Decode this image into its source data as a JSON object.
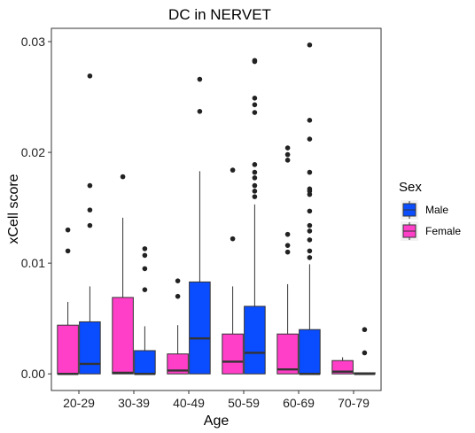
{
  "chart_data": {
    "type": "boxplot",
    "title": "DC in NERVET",
    "xlabel": "Age",
    "ylabel": "xCell score",
    "ylim": [
      -0.0015,
      0.0312
    ],
    "yticks": [
      {
        "value": 0.0,
        "label": "0.00"
      },
      {
        "value": 0.01,
        "label": "0.01"
      },
      {
        "value": 0.02,
        "label": "0.02"
      },
      {
        "value": 0.03,
        "label": "0.03"
      }
    ],
    "categories": [
      "20-29",
      "30-39",
      "40-49",
      "50-59",
      "60-69",
      "70-79"
    ],
    "grid": false,
    "legend": {
      "title": "Sex",
      "position": "right",
      "entries": [
        {
          "name": "Male",
          "color": "#0a4cff"
        },
        {
          "name": "Female",
          "color": "#ff3fc8"
        }
      ]
    },
    "series": [
      {
        "name": "Female",
        "color": "#ff3fc8",
        "boxes": [
          {
            "whisker_low": 0.0,
            "q1": 0.0,
            "median": 0.0,
            "q3": 0.0044,
            "whisker_high": 0.0065,
            "outliers": [
              0.0111,
              0.013
            ]
          },
          {
            "whisker_low": 0.0,
            "q1": 0.0,
            "median": 0.0001,
            "q3": 0.0069,
            "whisker_high": 0.0141,
            "outliers": [
              0.0178
            ]
          },
          {
            "whisker_low": 0.0,
            "q1": 0.0,
            "median": 0.0003,
            "q3": 0.0018,
            "whisker_high": 0.0044,
            "outliers": [
              0.007,
              0.0084
            ]
          },
          {
            "whisker_low": 0.0,
            "q1": 0.0,
            "median": 0.0011,
            "q3": 0.0036,
            "whisker_high": 0.0079,
            "outliers": [
              0.0122,
              0.0184
            ]
          },
          {
            "whisker_low": 0.0,
            "q1": 0.0,
            "median": 0.0004,
            "q3": 0.0036,
            "whisker_high": 0.0081,
            "outliers": [
              0.011,
              0.0116,
              0.0126,
              0.0193,
              0.0198,
              0.0204
            ]
          },
          {
            "whisker_low": 0.0,
            "q1": 0.0,
            "median": 0.0002,
            "q3": 0.0012,
            "whisker_high": 0.0015,
            "outliers": []
          }
        ]
      },
      {
        "name": "Male",
        "color": "#0a4cff",
        "boxes": [
          {
            "whisker_low": 0.0,
            "q1": 0.0,
            "median": 0.0009,
            "q3": 0.0047,
            "whisker_high": 0.0079,
            "outliers": [
              0.0134,
              0.0148,
              0.017,
              0.0269
            ]
          },
          {
            "whisker_low": 0.0,
            "q1": 0.0,
            "median": 0.0,
            "q3": 0.0021,
            "whisker_high": 0.0043,
            "outliers": [
              0.0076,
              0.0095,
              0.0107,
              0.0113
            ]
          },
          {
            "whisker_low": 0.0,
            "q1": 0.0,
            "median": 0.0032,
            "q3": 0.0083,
            "whisker_high": 0.0183,
            "outliers": [
              0.0237,
              0.0266
            ]
          },
          {
            "whisker_low": 0.0,
            "q1": 0.0,
            "median": 0.0019,
            "q3": 0.0061,
            "whisker_high": 0.0153,
            "outliers": [
              0.016,
              0.0165,
              0.017,
              0.0177,
              0.0182,
              0.0189,
              0.0236,
              0.0243,
              0.0249,
              0.0282,
              0.0283
            ]
          },
          {
            "whisker_low": 0.0,
            "q1": 0.0,
            "median": 0.0,
            "q3": 0.004,
            "whisker_high": 0.0099,
            "outliers": [
              0.0105,
              0.0111,
              0.0121,
              0.0129,
              0.0134,
              0.0147,
              0.0162,
              0.0165,
              0.0167,
              0.0182,
              0.0212,
              0.0229,
              0.0297
            ]
          },
          {
            "whisker_low": 0.0,
            "q1": 0.0,
            "median": 0.0,
            "q3": 0.0001,
            "whisker_high": 0.0001,
            "outliers": [
              0.0019,
              0.004
            ]
          }
        ]
      }
    ]
  }
}
